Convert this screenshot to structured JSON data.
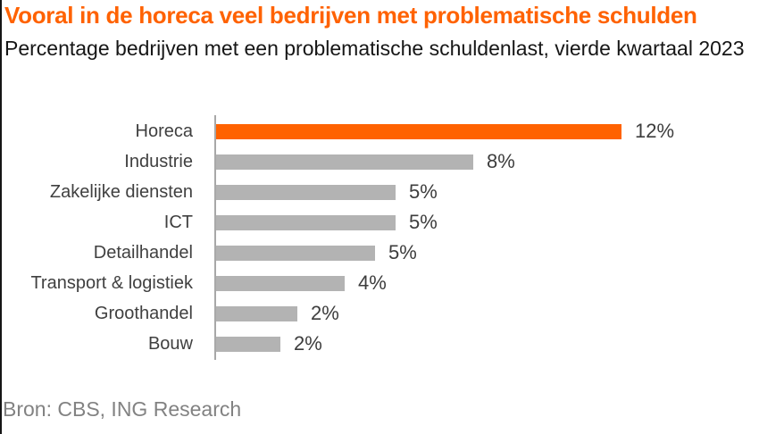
{
  "title": "Vooral in de horeca veel bedrijven met problematische schulden",
  "subtitle_lines": {
    "line1": "Percentage bedrijven met een problematische schuldenlast, vierde kwartaal",
    "line2": "2023"
  },
  "source": "Bron: CBS, ING Research",
  "colors": {
    "accent_orange": "#FF6200",
    "bar_gray": "#B3B3B3",
    "title_text": "#FF6200",
    "subtitle_text": "#161616",
    "label_text": "#404040",
    "value_text": "#3D3D3D",
    "source_text": "#828282",
    "axis_line": "#A8A8A8",
    "left_edge_line": "#161616"
  },
  "chart_data": {
    "type": "bar",
    "orientation": "horizontal",
    "title": "Vooral in de horeca veel bedrijven met problematische schulden",
    "subtitle": "Percentage bedrijven met een problematische schuldenlast, vierde kwartaal 2023",
    "source": "Bron: CBS, ING Research",
    "categories": [
      "Horeca",
      "Industrie",
      "Zakelijke diensten",
      "ICT",
      "Detailhandel",
      "Transport & logistiek",
      "Groothandel",
      "Bouw"
    ],
    "values": [
      12,
      8,
      5,
      5,
      5,
      4,
      2,
      2
    ],
    "value_labels": [
      "12%",
      "8%",
      "5%",
      "5%",
      "5%",
      "4%",
      "2%",
      "2%"
    ],
    "bar_length_values": [
      12.0,
      7.6,
      5.3,
      5.3,
      4.7,
      3.8,
      2.4,
      1.9
    ],
    "xmax": 12,
    "unit": "%",
    "highlight_category": "Horeca",
    "highlight_index": 0,
    "bar_color_highlight": "#FF6200",
    "bar_color_default": "#B3B3B3",
    "grid": false,
    "legend": false,
    "value_labels_position": "end-of-bar"
  }
}
